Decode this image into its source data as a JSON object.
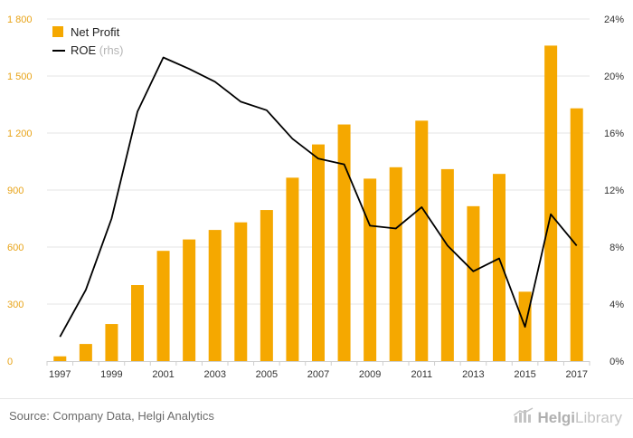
{
  "chart_data": {
    "type": "bar+line",
    "categories": [
      "1997",
      "1998",
      "1999",
      "2000",
      "2001",
      "2002",
      "2003",
      "2004",
      "2005",
      "2006",
      "2007",
      "2008",
      "2009",
      "2010",
      "2011",
      "2012",
      "2013",
      "2014",
      "2015",
      "2016",
      "2017"
    ],
    "x_tick_labels": [
      "1997",
      "1999",
      "2001",
      "2003",
      "2005",
      "2007",
      "2009",
      "2011",
      "2013",
      "2015",
      "2017"
    ],
    "series": [
      {
        "name": "Net Profit",
        "type": "bar",
        "axis": "left",
        "color": "#f5a800",
        "values": [
          25,
          90,
          195,
          400,
          580,
          640,
          690,
          730,
          795,
          965,
          1140,
          1245,
          960,
          1020,
          1265,
          1010,
          815,
          985,
          365,
          1660,
          1330
        ]
      },
      {
        "name": "ROE",
        "name_suffix": "(rhs)",
        "type": "line",
        "axis": "right",
        "color": "#000000",
        "values": [
          1.7,
          5.0,
          10.0,
          17.5,
          21.3,
          20.5,
          19.6,
          18.2,
          17.6,
          15.6,
          14.2,
          13.8,
          9.5,
          9.3,
          10.8,
          8.1,
          6.3,
          7.2,
          2.4,
          10.3,
          8.1
        ]
      }
    ],
    "y_left": {
      "min": 0,
      "max": 1800,
      "ticks": [
        0,
        300,
        600,
        900,
        1200,
        1500,
        1800
      ],
      "tick_labels": [
        "0",
        "300",
        "600",
        "900",
        "1 200",
        "1 500",
        "1 800"
      ],
      "color": "#e8a317"
    },
    "y_right": {
      "min": 0,
      "max": 24,
      "ticks": [
        0,
        4,
        8,
        12,
        16,
        20,
        24
      ],
      "tick_labels": [
        "0%",
        "4%",
        "8%",
        "12%",
        "16%",
        "20%",
        "24%"
      ]
    },
    "grid": "horizontal",
    "legend": {
      "position": "top-left",
      "items": [
        {
          "label": "Net Profit",
          "suffix": ""
        },
        {
          "label": "ROE",
          "suffix": "(rhs)"
        }
      ]
    }
  },
  "footer": {
    "source": "Source: Company Data, Helgi Analytics",
    "brand_part1": "Helgi",
    "brand_part2": "Library",
    "brand_icon": "helgi-library-logo-icon"
  }
}
